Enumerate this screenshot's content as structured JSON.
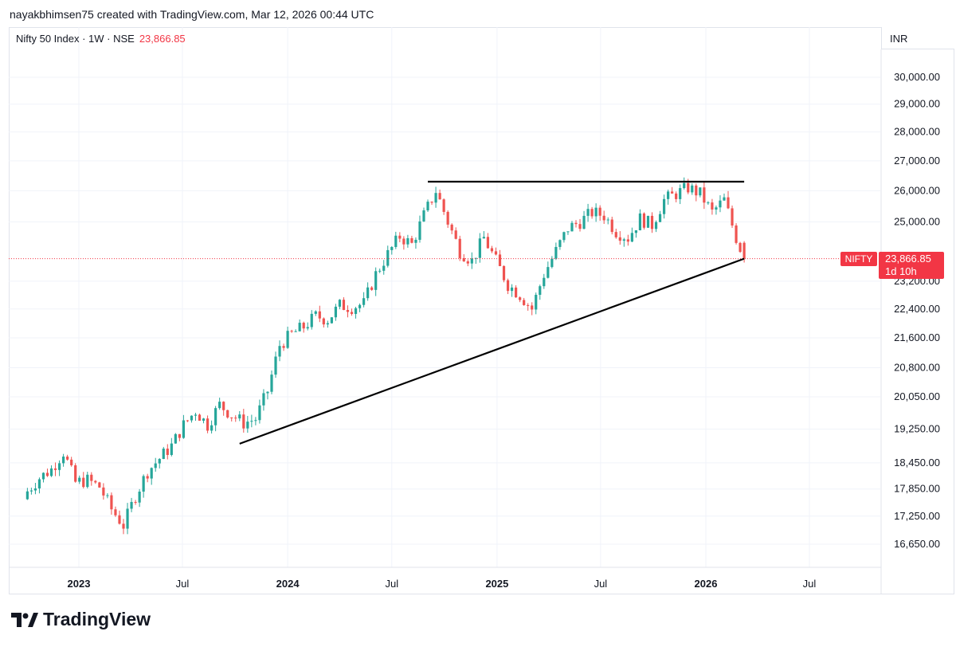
{
  "header": {
    "credit": "nayakbhimsen75 created with TradingView.com, Mar 12, 2026 00:44 UTC"
  },
  "legend": {
    "symbol": "Nifty 50 Index · 1W · NSE",
    "last_price": "23,866.85"
  },
  "currency": "INR",
  "price_tags": {
    "symbol": "NIFTY",
    "price": "23,866.85",
    "countdown": "1d 10h"
  },
  "brand": {
    "name": "TradingView"
  },
  "colors": {
    "up": "#26a69a",
    "down": "#ef5350",
    "line": "#000000",
    "grid": "#f0f3fa",
    "last_price": "#f23645"
  },
  "chart_data": {
    "type": "candlestick",
    "y_scale": "log",
    "y_ticks": [
      {
        "value": 30000,
        "label": "30,000.00"
      },
      {
        "value": 29000,
        "label": "29,000.00"
      },
      {
        "value": 28000,
        "label": "28,000.00"
      },
      {
        "value": 27000,
        "label": "27,000.00"
      },
      {
        "value": 26000,
        "label": "26,000.00"
      },
      {
        "value": 25000,
        "label": "25,000.00"
      },
      {
        "value": 23200,
        "label": "23,200.00"
      },
      {
        "value": 22400,
        "label": "22,400.00"
      },
      {
        "value": 21600,
        "label": "21,600.00"
      },
      {
        "value": 20800,
        "label": "20,800.00"
      },
      {
        "value": 20050,
        "label": "20,050.00"
      },
      {
        "value": 19250,
        "label": "19,250.00"
      },
      {
        "value": 18450,
        "label": "18,450.00"
      },
      {
        "value": 17850,
        "label": "17,850.00"
      },
      {
        "value": 17250,
        "label": "17,250.00"
      },
      {
        "value": 16650,
        "label": "16,650.00"
      }
    ],
    "x_ticks": [
      {
        "date": "2023-01-01",
        "label": "2023",
        "bold": true
      },
      {
        "date": "2023-07-01",
        "label": "Jul",
        "bold": false
      },
      {
        "date": "2024-01-01",
        "label": "2024",
        "bold": true
      },
      {
        "date": "2024-07-01",
        "label": "Jul",
        "bold": false
      },
      {
        "date": "2025-01-01",
        "label": "2025",
        "bold": true
      },
      {
        "date": "2025-07-01",
        "label": "Jul",
        "bold": false
      },
      {
        "date": "2026-01-01",
        "label": "2026",
        "bold": true
      },
      {
        "date": "2026-07-01",
        "label": "Jul",
        "bold": false
      }
    ],
    "last_price": 23866.85,
    "series": [
      {
        "x": "2022-10-03",
        "close": 17800
      },
      {
        "x": "2022-10-24",
        "close": 18100
      },
      {
        "x": "2022-11-14",
        "close": 18300
      },
      {
        "x": "2022-12-05",
        "close": 18700
      },
      {
        "x": "2022-12-26",
        "close": 18000
      },
      {
        "x": "2023-01-16",
        "close": 18050
      },
      {
        "x": "2023-02-06",
        "close": 17900
      },
      {
        "x": "2023-02-27",
        "close": 17400
      },
      {
        "x": "2023-03-20",
        "close": 17050
      },
      {
        "x": "2023-04-10",
        "close": 17700
      },
      {
        "x": "2023-05-01",
        "close": 18250
      },
      {
        "x": "2023-05-22",
        "close": 18550
      },
      {
        "x": "2023-06-12",
        "close": 18850
      },
      {
        "x": "2023-07-03",
        "close": 19350
      },
      {
        "x": "2023-07-24",
        "close": 19700
      },
      {
        "x": "2023-08-14",
        "close": 19350
      },
      {
        "x": "2023-09-04",
        "close": 19850
      },
      {
        "x": "2023-09-25",
        "close": 19600
      },
      {
        "x": "2023-10-16",
        "close": 19400
      },
      {
        "x": "2023-11-06",
        "close": 19500
      },
      {
        "x": "2023-11-27",
        "close": 20200
      },
      {
        "x": "2023-12-18",
        "close": 21400
      },
      {
        "x": "2024-01-08",
        "close": 21700
      },
      {
        "x": "2024-01-29",
        "close": 21900
      },
      {
        "x": "2024-02-19",
        "close": 22200
      },
      {
        "x": "2024-03-11",
        "close": 22100
      },
      {
        "x": "2024-04-01",
        "close": 22500
      },
      {
        "x": "2024-04-22",
        "close": 22450
      },
      {
        "x": "2024-05-13",
        "close": 22550
      },
      {
        "x": "2024-06-03",
        "close": 23400
      },
      {
        "x": "2024-06-24",
        "close": 24000
      },
      {
        "x": "2024-07-15",
        "close": 24550
      },
      {
        "x": "2024-08-05",
        "close": 24300
      },
      {
        "x": "2024-08-26",
        "close": 25200
      },
      {
        "x": "2024-09-16",
        "close": 26000
      },
      {
        "x": "2024-10-07",
        "close": 25000
      },
      {
        "x": "2024-10-28",
        "close": 24100
      },
      {
        "x": "2024-11-18",
        "close": 23800
      },
      {
        "x": "2024-12-09",
        "close": 24500
      },
      {
        "x": "2024-12-30",
        "close": 23800
      },
      {
        "x": "2025-01-20",
        "close": 23100
      },
      {
        "x": "2025-02-10",
        "close": 22800
      },
      {
        "x": "2025-03-03",
        "close": 22400
      },
      {
        "x": "2025-03-24",
        "close": 23400
      },
      {
        "x": "2025-04-14",
        "close": 24100
      },
      {
        "x": "2025-05-05",
        "close": 24800
      },
      {
        "x": "2025-05-26",
        "close": 25000
      },
      {
        "x": "2025-06-16",
        "close": 25300
      },
      {
        "x": "2025-07-07",
        "close": 25200
      },
      {
        "x": "2025-07-28",
        "close": 24700
      },
      {
        "x": "2025-08-18",
        "close": 24500
      },
      {
        "x": "2025-09-08",
        "close": 25100
      },
      {
        "x": "2025-09-29",
        "close": 24900
      },
      {
        "x": "2025-10-20",
        "close": 25700
      },
      {
        "x": "2025-11-10",
        "close": 25900
      },
      {
        "x": "2025-12-01",
        "close": 26100
      },
      {
        "x": "2025-12-22",
        "close": 25900
      },
      {
        "x": "2026-01-12",
        "close": 25300
      },
      {
        "x": "2026-02-02",
        "close": 25700
      },
      {
        "x": "2026-02-23",
        "close": 24500
      },
      {
        "x": "2026-03-09",
        "close": 23866.85
      }
    ],
    "trendlines": [
      {
        "name": "resistance",
        "points": [
          {
            "x": "2024-09-02",
            "y": 26300
          },
          {
            "x": "2026-03-09",
            "y": 26300
          }
        ]
      },
      {
        "name": "support",
        "points": [
          {
            "x": "2023-10-09",
            "y": 18900
          },
          {
            "x": "2026-03-09",
            "y": 23866.85
          }
        ]
      }
    ]
  }
}
